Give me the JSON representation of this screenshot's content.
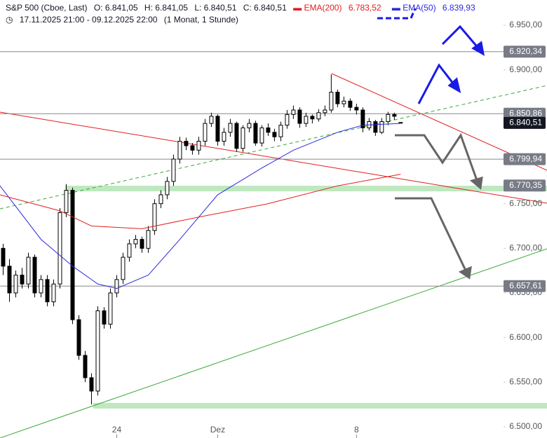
{
  "header": {
    "symbol": "S&P 500 (Cboe, Last)",
    "open": "O: 6.841,05",
    "high": "H: 6.841,05",
    "low": "L: 6.840,51",
    "close": "C: 6.840,51",
    "ema200_name": "EMA(200)",
    "ema200_value": "6.783,52",
    "ema50_name": "EMA(50)",
    "ema50_value": "6.839,93",
    "range": "17.11.2025 21:00 - 09.12.2025 22:00",
    "interval": "(1 Monat, 1 Stunde)"
  },
  "chart_data": {
    "type": "candlestick",
    "xlim": [
      -0.5,
      79.3
    ],
    "xticks": [
      {
        "value": 18,
        "label": "24"
      },
      {
        "value": 34,
        "label": "Dez"
      },
      {
        "value": 56,
        "label": "8"
      }
    ],
    "ylim": [
      6487.4,
      6978.3
    ],
    "yticks": [
      {
        "value": 6500,
        "label": "6.500,00"
      },
      {
        "value": 6550,
        "label": "6.550,00"
      },
      {
        "value": 6600,
        "label": "6.600,00"
      },
      {
        "value": 6650,
        "label": "6.650,00"
      },
      {
        "value": 6700,
        "label": "6.700,00"
      },
      {
        "value": 6750,
        "label": "6.750,00"
      },
      {
        "value": 6800,
        "label": "6.800,00"
      },
      {
        "value": 6850,
        "label": "6.850,00"
      },
      {
        "value": 6900,
        "label": "6.900,00"
      },
      {
        "value": 6950,
        "label": "6.950,00"
      }
    ],
    "up_color": "#ffffff",
    "down_color": "#000000",
    "open": [
      6700,
      6680,
      6650,
      6670,
      6660,
      6690,
      6650,
      6665,
      6640,
      6660,
      6740,
      6765,
      6620,
      6580,
      6555,
      6540,
      6630,
      6615,
      6650,
      6665,
      6690,
      6705,
      6710,
      6700,
      6720,
      6750,
      6760,
      6775,
      6800,
      6820,
      6815,
      6810,
      6820,
      6840,
      6848,
      6820,
      6830,
      6840,
      6812,
      6835,
      6840,
      6818,
      6835,
      6830,
      6825,
      6838,
      6850,
      6855,
      6840,
      6848,
      6845,
      6852,
      6855,
      6875,
      6862,
      6865,
      6858,
      6855,
      6835,
      6842,
      6830,
      6842,
      6850,
      6841.05
    ],
    "high": [
      6705,
      6688,
      6675,
      6678,
      6695,
      6693,
      6670,
      6670,
      6665,
      6745,
      6772,
      6768,
      6625,
      6585,
      6560,
      6635,
      6634,
      6655,
      6670,
      6695,
      6710,
      6715,
      6713,
      6725,
      6755,
      6765,
      6780,
      6805,
      6825,
      6824,
      6818,
      6825,
      6845,
      6852,
      6850,
      6835,
      6845,
      6842,
      6838,
      6845,
      6843,
      6838,
      6840,
      6834,
      6842,
      6855,
      6860,
      6858,
      6852,
      6850,
      6856,
      6860,
      6895,
      6878,
      6870,
      6868,
      6862,
      6858,
      6846,
      6844,
      6846,
      6853,
      6852,
      6841.05
    ],
    "low": [
      6670,
      6640,
      6645,
      6655,
      6655,
      6645,
      6645,
      6635,
      6635,
      6655,
      6735,
      6615,
      6575,
      6550,
      6525,
      6535,
      6610,
      6610,
      6645,
      6660,
      6685,
      6700,
      6695,
      6695,
      6715,
      6745,
      6755,
      6770,
      6795,
      6810,
      6805,
      6805,
      6815,
      6836,
      6815,
      6815,
      6825,
      6808,
      6808,
      6830,
      6815,
      6814,
      6826,
      6820,
      6820,
      6834,
      6845,
      6835,
      6836,
      6840,
      6842,
      6848,
      6852,
      6858,
      6858,
      6854,
      6850,
      6830,
      6832,
      6826,
      6828,
      6838,
      6844,
      6840.51
    ],
    "close": [
      6680,
      6650,
      6670,
      6660,
      6690,
      6650,
      6665,
      6640,
      6660,
      6740,
      6765,
      6620,
      6580,
      6555,
      6540,
      6630,
      6615,
      6650,
      6665,
      6690,
      6705,
      6710,
      6700,
      6720,
      6750,
      6760,
      6775,
      6800,
      6820,
      6815,
      6810,
      6820,
      6840,
      6848,
      6820,
      6830,
      6840,
      6812,
      6835,
      6840,
      6818,
      6835,
      6830,
      6825,
      6838,
      6850,
      6855,
      6840,
      6848,
      6845,
      6852,
      6855,
      6875,
      6862,
      6865,
      6858,
      6855,
      6835,
      6842,
      6830,
      6842,
      6850,
      6848,
      6840.51
    ],
    "lines": [
      {
        "color": "#2a2ae0",
        "x": [
          -0.5,
          6,
          11,
          15,
          18,
          23,
          28,
          34,
          41,
          46,
          53,
          57,
          63
        ],
        "values": [
          6770,
          6710,
          6680,
          6660,
          6655,
          6670,
          6710,
          6760,
          6790,
          6810,
          6830,
          6838,
          6840
        ]
      },
      {
        "color": "#e01e1e",
        "x": [
          -0.5,
          9,
          14,
          22,
          31,
          42,
          53,
          63
        ],
        "values": [
          6760,
          6742,
          6725,
          6722,
          6735,
          6750,
          6770,
          6783
        ]
      }
    ],
    "levels": [
      {
        "value": 6920.34,
        "label": "6.920,34",
        "color": "#787b86",
        "line": true
      },
      {
        "value": 6850.86,
        "label": "6.850,86",
        "color": "#787b86",
        "line": true
      },
      {
        "value": 6840.51,
        "label": "6.840,51",
        "color": "#131722",
        "line": false
      },
      {
        "value": 6799.94,
        "label": "6.799,94",
        "color": "#787b86",
        "line": true
      },
      {
        "value": 6770.35,
        "label": "6.770,35",
        "color": "#787b86",
        "line": false
      },
      {
        "value": 6657.61,
        "label": "6.657,61",
        "color": "#787b86",
        "line": true
      }
    ]
  }
}
